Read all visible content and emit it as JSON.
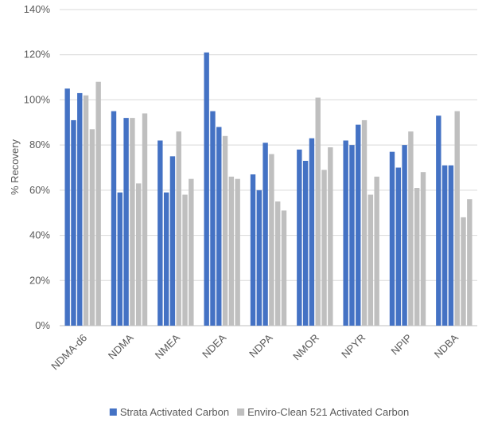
{
  "chart_data": {
    "type": "bar",
    "title": "",
    "xlabel": "",
    "ylabel": "% Recovery",
    "ylim": [
      0,
      140
    ],
    "yticks": [
      "0%",
      "20%",
      "40%",
      "60%",
      "80%",
      "100%",
      "120%",
      "140%"
    ],
    "grid": true,
    "legend_position": "bottom",
    "categories": [
      "NDMA-d6",
      "NDMA",
      "NMEA",
      "NDEA",
      "NDPA",
      "NMOR",
      "NPYR",
      "NPIP",
      "NDBA"
    ],
    "bar_order": [
      "S",
      "S",
      "S",
      "E",
      "E",
      "E"
    ],
    "series": [
      {
        "name": "Strata Activated Carbon",
        "color": "#4472C4",
        "values": [
          [
            105,
            91,
            103
          ],
          [
            95,
            59,
            92
          ],
          [
            82,
            59,
            75
          ],
          [
            121,
            95,
            88
          ],
          [
            67,
            60,
            81
          ],
          [
            78,
            73,
            83
          ],
          [
            82,
            80,
            89
          ],
          [
            77,
            70,
            80
          ],
          [
            93,
            71,
            71
          ]
        ]
      },
      {
        "name": "Enviro-Clean 521 Activated Carbon",
        "color": "#BFBFBF",
        "values": [
          [
            102,
            87,
            108
          ],
          [
            92,
            63,
            94
          ],
          [
            86,
            58,
            65
          ],
          [
            84,
            66,
            65
          ],
          [
            76,
            55,
            51
          ],
          [
            101,
            69,
            79
          ],
          [
            91,
            58,
            66
          ],
          [
            86,
            61,
            68
          ],
          [
            95,
            48,
            56
          ]
        ]
      }
    ]
  }
}
